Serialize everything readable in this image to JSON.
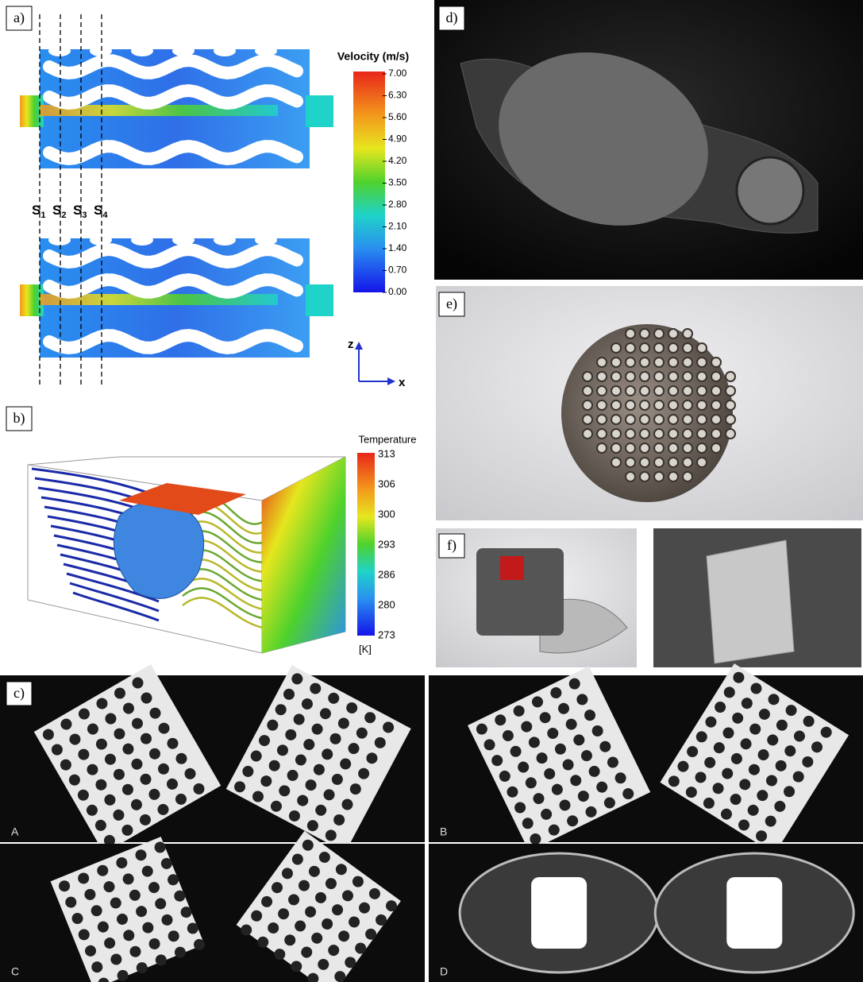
{
  "panel_labels": [
    "a)",
    "b)",
    "c)",
    "d)",
    "e)",
    "f)"
  ],
  "velocity_legend": {
    "title": "Velocity (m/s)",
    "ticks": [
      "7.00",
      "6.30",
      "5.60",
      "4.90",
      "4.20",
      "3.50",
      "2.80",
      "2.10",
      "1.40",
      "0.70",
      "0.00"
    ]
  },
  "sections": [
    {
      "main": "S",
      "sub": "1"
    },
    {
      "main": "S",
      "sub": "2"
    },
    {
      "main": "S",
      "sub": "3"
    },
    {
      "main": "S",
      "sub": "4"
    }
  ],
  "axes": {
    "vertical": "z",
    "horizontal": "x"
  },
  "temperature_legend": {
    "title": "Temperature",
    "ticks": [
      313,
      306,
      300,
      293,
      286,
      280,
      273
    ],
    "unit": "[K]"
  },
  "ct_labels": [
    "A",
    "B",
    "C",
    "D"
  ]
}
